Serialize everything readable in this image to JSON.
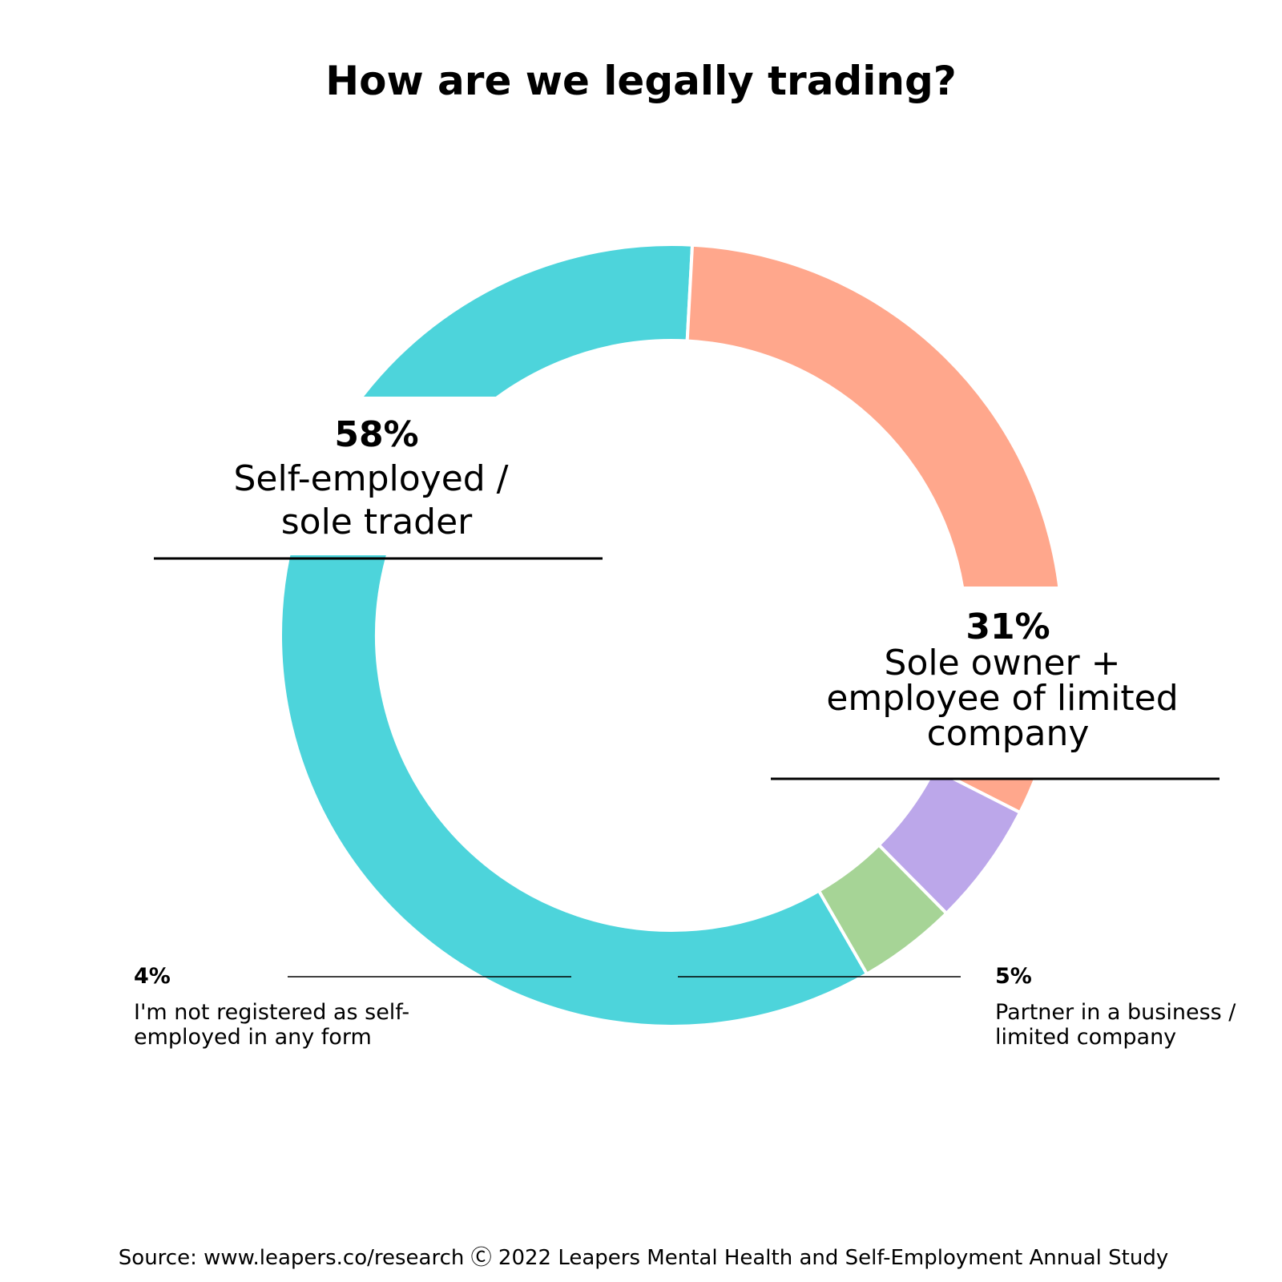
{
  "chart_data": {
    "type": "pie",
    "title": "How are we legally trading?",
    "slices": [
      {
        "label": "Self-employed / sole trader",
        "value": 58,
        "value_label": "58%",
        "color": "#4dd4db"
      },
      {
        "label": "Sole owner + employee of limited company",
        "value": 31,
        "value_label": "31%",
        "color": "#ffa78c"
      },
      {
        "label": "Partner in a business / limited company",
        "value": 5,
        "value_label": "5%",
        "color": "#bca7ea"
      },
      {
        "label": "I'm not registered as self-employed in any form",
        "value": 4,
        "value_label": "4%",
        "color": "#a6d496"
      }
    ],
    "donut": true,
    "source": "Source: www.leapers.co/research Ⓒ 2022 Leapers Mental Health and Self-Employment Annual Study"
  }
}
